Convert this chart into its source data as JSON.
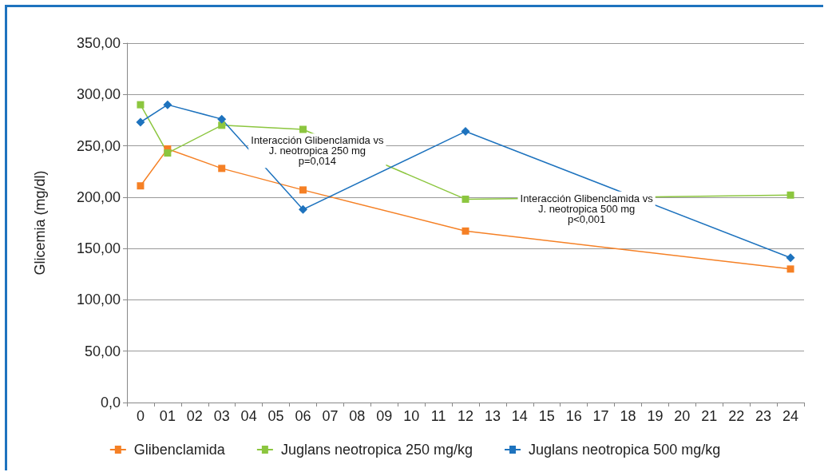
{
  "chart_data": {
    "type": "line",
    "ylabel": "Glicemia (mg/dl)",
    "categories": [
      "0",
      "01",
      "02",
      "03",
      "04",
      "05",
      "06",
      "07",
      "08",
      "09",
      "10",
      "11",
      "12",
      "13",
      "14",
      "15",
      "16",
      "17",
      "18",
      "19",
      "20",
      "21",
      "22",
      "23",
      "24"
    ],
    "series": [
      {
        "name": "Glibenclamida",
        "color": "#f58025",
        "marker": "square",
        "values": [
          211,
          247,
          null,
          228,
          null,
          null,
          207,
          null,
          null,
          null,
          null,
          null,
          167,
          null,
          null,
          null,
          null,
          null,
          null,
          null,
          null,
          null,
          null,
          null,
          130
        ]
      },
      {
        "name": "Juglans neotropica 250 mg/kg",
        "color": "#8cc63f",
        "marker": "square",
        "values": [
          290,
          243,
          null,
          270,
          null,
          null,
          266,
          null,
          null,
          null,
          null,
          null,
          198,
          null,
          null,
          null,
          null,
          null,
          null,
          null,
          null,
          null,
          null,
          null,
          202
        ]
      },
      {
        "name": "Juglans neotropica 500 mg/kg",
        "color": "#1e73be",
        "marker": "diamond",
        "values": [
          273,
          290,
          null,
          276,
          null,
          null,
          188,
          null,
          null,
          null,
          null,
          null,
          264,
          null,
          null,
          null,
          null,
          null,
          null,
          null,
          null,
          null,
          null,
          null,
          141
        ]
      }
    ],
    "ylim": [
      0,
      350
    ],
    "yticks": [
      {
        "value": 0,
        "label": "0,0"
      },
      {
        "value": 50,
        "label": "50,00"
      },
      {
        "value": 100,
        "label": "100,00"
      },
      {
        "value": 150,
        "label": "150,00"
      },
      {
        "value": 200,
        "label": "200,00"
      },
      {
        "value": 250,
        "label": "250,00"
      },
      {
        "value": 300,
        "label": "300,00"
      },
      {
        "value": 350,
        "label": "350,00"
      }
    ],
    "grid": "y",
    "legend": "bottom",
    "line_style": "solid",
    "annotations": [
      "Interacción Glibenclamida vs\nJ. neotropica 250 mg\np=0,014",
      "Interacción Glibenclamida vs\nJ. neotropica 500 mg\np<0,001"
    ]
  }
}
